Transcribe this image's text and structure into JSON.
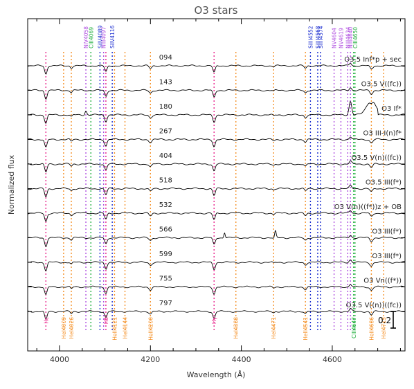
{
  "chart_data": {
    "type": "line",
    "title": "O3 stars",
    "xlabel": "Wavelength (Å)",
    "ylabel": "Normalized flux",
    "xlim": [
      3930,
      4760
    ],
    "x_ticks": [
      4000,
      4200,
      4400,
      4600
    ],
    "scale_bar_label": "0.2",
    "grid": false,
    "line_colors": {
      "hydrogen": "#e8208a",
      "helium_i": "#f5922a",
      "nitrogen": "#b050e0",
      "silicon": "#1c2ed0",
      "carbon": "#1fae3c",
      "spectrum": "#000000"
    },
    "top_lines": [
      {
        "label": "NIV4058",
        "x": 4058,
        "cls": "nitrogen"
      },
      {
        "label": "CIII4069",
        "x": 4069,
        "cls": "carbon"
      },
      {
        "label": "SiIV4089",
        "x": 4089,
        "cls": "silicon"
      },
      {
        "label": "NIII4097",
        "x": 4097,
        "cls": "nitrogen"
      },
      {
        "label": "SiIV4116",
        "x": 4116,
        "cls": "silicon"
      },
      {
        "label": "SiIII4552",
        "x": 4552,
        "cls": "silicon"
      },
      {
        "label": "SiIII4568",
        "x": 4568,
        "cls": "silicon"
      },
      {
        "label": "SiIII4574",
        "x": 4574,
        "cls": "silicon"
      },
      {
        "label": "NV4604",
        "x": 4604,
        "cls": "nitrogen"
      },
      {
        "label": "NV4619",
        "x": 4619,
        "cls": "nitrogen"
      },
      {
        "label": "NIII4634",
        "x": 4634,
        "cls": "nitrogen"
      },
      {
        "label": "NIII4640",
        "x": 4640,
        "cls": "nitrogen"
      },
      {
        "label": "CIII4650",
        "x": 4650,
        "cls": "carbon"
      }
    ],
    "bottom_lines": [
      {
        "label": "Hε",
        "x": 3970,
        "cls": "hydrogen"
      },
      {
        "label": "HeI4009",
        "x": 4009,
        "cls": "helium_i"
      },
      {
        "label": "HeI4026",
        "x": 4026,
        "cls": "helium_i"
      },
      {
        "label": "Hδ",
        "x": 4102,
        "cls": "hydrogen"
      },
      {
        "label": "HeII4121",
        "x": 4121,
        "cls": "helium_i"
      },
      {
        "label": "HeI4144",
        "x": 4144,
        "cls": "helium_i"
      },
      {
        "label": "HeII4200",
        "x": 4200,
        "cls": "helium_i"
      },
      {
        "label": "Hγ",
        "x": 4340,
        "cls": "hydrogen"
      },
      {
        "label": "HeI4388",
        "x": 4388,
        "cls": "helium_i"
      },
      {
        "label": "HeI4471",
        "x": 4471,
        "cls": "helium_i"
      },
      {
        "label": "HeII4541",
        "x": 4541,
        "cls": "helium_i"
      },
      {
        "label": "CIII4647",
        "x": 4647,
        "cls": "carbon"
      },
      {
        "label": "HeII4686",
        "x": 4686,
        "cls": "helium_i"
      },
      {
        "label": "HeI4713",
        "x": 4713,
        "cls": "helium_i"
      }
    ],
    "series": [
      {
        "name": "094",
        "classification": "O3.5 Inf*p + sec"
      },
      {
        "name": "143",
        "classification": "O3.5 V((fc))"
      },
      {
        "name": "180",
        "classification": "O3 If*"
      },
      {
        "name": "267",
        "classification": "O3 III-I(n)f*"
      },
      {
        "name": "404",
        "classification": "O3.5 V(n)((fc))"
      },
      {
        "name": "518",
        "classification": "O3.5 III(f*)"
      },
      {
        "name": "532",
        "classification": "O3 V(n)((f*))z + OB"
      },
      {
        "name": "566",
        "classification": "O3 III(f*)"
      },
      {
        "name": "599",
        "classification": "O3 III(f*)"
      },
      {
        "name": "755",
        "classification": "O3 Vn((f*))"
      },
      {
        "name": "797",
        "classification": "O3.5 V((n))((fc))"
      }
    ]
  }
}
